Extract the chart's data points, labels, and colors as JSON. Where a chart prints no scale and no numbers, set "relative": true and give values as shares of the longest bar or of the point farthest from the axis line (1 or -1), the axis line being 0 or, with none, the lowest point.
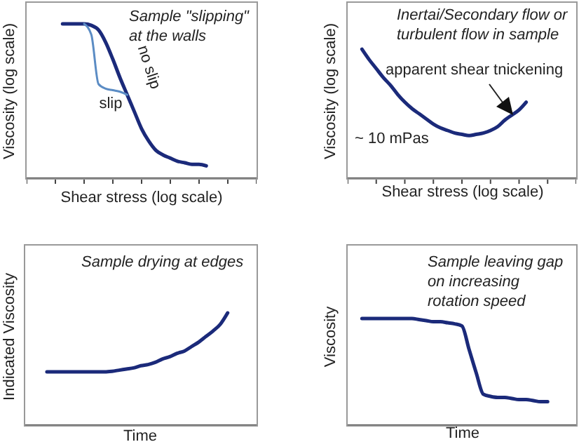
{
  "chart_data": [
    {
      "type": "line",
      "relative": true,
      "title": "Sample \"slipping\"\nat the walls",
      "xlabel": "Shear stress (log scale)",
      "ylabel": "Viscosity (log scale)",
      "categories": [
        null,
        null,
        null,
        null,
        null,
        null,
        null,
        null,
        null,
        null,
        null,
        null,
        null,
        null,
        null,
        null,
        null,
        null,
        null,
        null,
        null,
        null,
        null,
        null,
        null,
        null,
        null,
        null,
        null,
        null,
        null,
        null,
        null
      ],
      "series": [
        {
          "name": "no slip",
          "color": "#1b2a7a",
          "values": [
            null,
            null,
            null,
            null,
            null,
            1,
            1,
            1,
            1,
            0.99,
            0.96,
            0.88,
            0.77,
            0.65,
            0.54,
            0.43,
            0.32,
            0.24,
            0.18,
            0.15,
            0.13,
            0.11,
            0.1,
            0.09,
            0.09,
            0.08,
            null,
            null,
            null,
            null,
            null,
            null,
            null
          ]
        },
        {
          "name": "slip",
          "color": "#5b8cc4",
          "values": [
            null,
            null,
            null,
            null,
            null,
            null,
            null,
            null,
            1,
            0.93,
            0.61,
            0.58,
            0.57,
            0.56,
            0.54,
            null,
            null,
            null,
            null,
            null,
            null,
            null,
            null,
            null,
            null,
            null,
            null,
            null,
            null,
            null,
            null,
            null,
            null
          ]
        }
      ]
    },
    {
      "type": "line",
      "relative": true,
      "title": "Inertai/Secondary flow or\nturbulent flow in sample",
      "xlabel": "Shear stress (log scale)",
      "ylabel": "Viscosity (log scale)",
      "annotations": [
        "apparent shear tnickening",
        "~ 10 mPas"
      ],
      "categories": [
        null,
        null,
        null,
        null,
        null,
        null,
        null,
        null,
        null,
        null,
        null,
        null,
        null,
        null,
        null,
        null,
        null,
        null,
        null,
        null,
        null,
        null,
        null,
        null,
        null,
        null,
        null,
        null,
        null,
        null,
        null,
        null,
        null
      ],
      "series": [
        {
          "color": "#1b2a7a",
          "values": [
            null,
            null,
            1,
            0.92,
            0.85,
            0.78,
            0.72,
            0.65,
            0.59,
            0.54,
            0.5,
            0.46,
            0.42,
            0.39,
            0.37,
            0.35,
            0.34,
            0.33,
            0.34,
            0.35,
            0.37,
            0.4,
            0.45,
            0.49,
            0.53,
            0.59,
            null,
            null,
            null,
            null,
            null,
            null,
            null
          ]
        }
      ]
    },
    {
      "type": "line",
      "relative": true,
      "title": "Sample drying at edges",
      "xlabel": "Time",
      "ylabel": "Indicated Viscosity",
      "categories": [
        null,
        null,
        null,
        null,
        null,
        null,
        null,
        null,
        null,
        null,
        null,
        null,
        null,
        null,
        null,
        null,
        null,
        null,
        null,
        null,
        null,
        null,
        null,
        null,
        null,
        null,
        null,
        null,
        null,
        null,
        null,
        null,
        null
      ],
      "series": [
        {
          "color": "#1b2a7a",
          "values": [
            null,
            null,
            null,
            0.475,
            0.475,
            0.475,
            0.475,
            0.475,
            0.475,
            0.475,
            0.475,
            0.475,
            0.48,
            0.49,
            0.5,
            0.51,
            0.53,
            0.54,
            0.56,
            0.59,
            0.61,
            0.64,
            0.66,
            0.7,
            0.74,
            0.79,
            0.84,
            0.9,
            1,
            null,
            null,
            null,
            null
          ]
        }
      ]
    },
    {
      "type": "line",
      "relative": true,
      "title": "Sample leaving gap\non increasing\nrotation speed",
      "xlabel": "Time",
      "ylabel": "Viscosity",
      "categories": [
        null,
        null,
        null,
        null,
        null,
        null,
        null,
        null,
        null,
        null,
        null,
        null,
        null,
        null,
        null,
        null,
        null,
        null,
        null,
        null,
        null,
        null,
        null,
        null,
        null,
        null,
        null,
        null,
        null,
        null,
        null,
        null,
        null
      ],
      "series": [
        {
          "color": "#1b2a7a",
          "values": [
            null,
            null,
            1,
            1,
            1,
            1,
            1,
            1,
            1,
            1,
            0.99,
            0.98,
            0.97,
            0.97,
            0.96,
            0.95,
            0.93,
            0.71,
            0.49,
            0.29,
            0.27,
            0.26,
            0.26,
            0.25,
            0.24,
            0.24,
            0.23,
            0.22,
            0.22,
            null,
            null,
            null,
            null
          ]
        }
      ]
    }
  ]
}
